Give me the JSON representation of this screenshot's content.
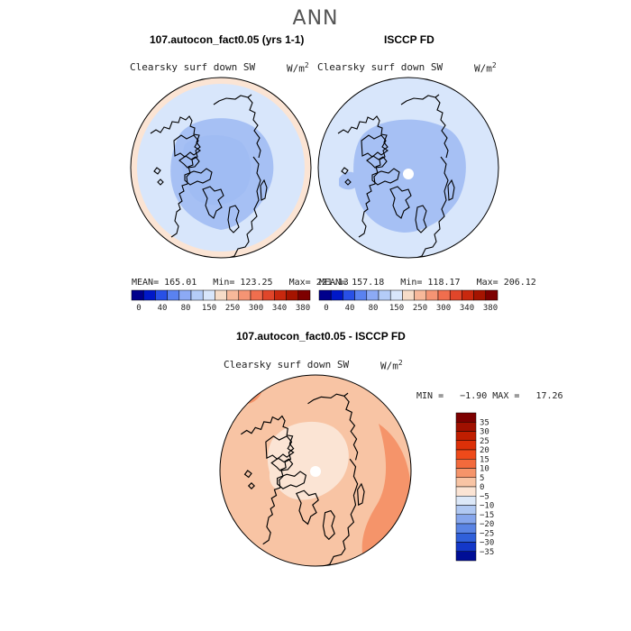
{
  "page": {
    "title": "ANN"
  },
  "panels": {
    "model": {
      "title": "107.autocon_fact0.05 (yrs 1-1)",
      "variable": "Clearsky surf down SW",
      "units": "W/m",
      "units_exp": "2",
      "stats": "MEAN= 165.01   Min= 123.25   Max= 221.13"
    },
    "obs": {
      "title": "ISCCP FD",
      "variable": "Clearsky surf down SW",
      "units": "W/m",
      "units_exp": "2",
      "stats": "MEAN= 157.18   Min= 118.17   Max= 206.12"
    },
    "diff": {
      "title": "107.autocon_fact0.05 - ISCCP FD",
      "variable": "Clearsky surf down SW",
      "units": "W/m",
      "units_exp": "2",
      "stats": "MIN =   −1.90 MAX =   17.26"
    }
  },
  "chart_data": [
    {
      "type": "heatmap",
      "projection": "north-polar-stereographic",
      "title": "107.autocon_fact0.05 (yrs 1-1)",
      "variable": "Clearsky surf down SW",
      "units": "W/m2",
      "mean": 165.01,
      "min": 123.25,
      "max": 221.13,
      "colorbar": {
        "orientation": "horizontal",
        "levels": [
          "0",
          "40",
          "80",
          "150",
          "250",
          "300",
          "340",
          "380"
        ],
        "colors": [
          "#00008c",
          "#0018c8",
          "#2850e6",
          "#5a82f0",
          "#8caaf5",
          "#b4ccf8",
          "#d8e6fb",
          "#f6dcc8",
          "#f7b89a",
          "#f59474",
          "#f06e4e",
          "#e0462a",
          "#c8280e",
          "#a51400",
          "#7d0000"
        ]
      }
    },
    {
      "type": "heatmap",
      "projection": "north-polar-stereographic",
      "title": "ISCCP FD",
      "variable": "Clearsky surf down SW",
      "units": "W/m2",
      "mean": 157.18,
      "min": 118.17,
      "max": 206.12,
      "colorbar": {
        "orientation": "horizontal",
        "levels": [
          "0",
          "40",
          "80",
          "150",
          "250",
          "300",
          "340",
          "380"
        ],
        "colors": [
          "#00008c",
          "#0018c8",
          "#2850e6",
          "#5a82f0",
          "#8caaf5",
          "#b4ccf8",
          "#d8e6fb",
          "#f6dcc8",
          "#f7b89a",
          "#f59474",
          "#f06e4e",
          "#e0462a",
          "#c8280e",
          "#a51400",
          "#7d0000"
        ]
      }
    },
    {
      "type": "heatmap",
      "projection": "north-polar-stereographic",
      "title": "107.autocon_fact0.05 - ISCCP FD",
      "variable": "Clearsky surf down SW",
      "units": "W/m2",
      "min": -1.9,
      "max": 17.26,
      "colorbar": {
        "orientation": "vertical",
        "levels": [
          "35",
          "30",
          "25",
          "20",
          "15",
          "10",
          "5",
          "0",
          "−5",
          "−10",
          "−15",
          "−20",
          "−25",
          "−30",
          "−35"
        ],
        "colors": [
          "#7d0000",
          "#a01000",
          "#c01e00",
          "#dc3008",
          "#ee4a1a",
          "#f26a3c",
          "#f5946a",
          "#f8c4a4",
          "#fbe4d4",
          "#dce8f8",
          "#b0c8f2",
          "#86a6ec",
          "#5a84e4",
          "#3060da",
          "#1438c8",
          "#000e96"
        ]
      }
    }
  ]
}
